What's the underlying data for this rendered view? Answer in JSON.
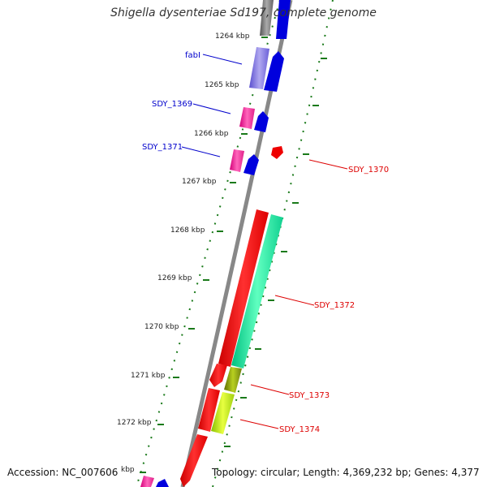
{
  "title": "Shigella dysenteriae Sd197, complete genome",
  "footer": {
    "accession": "Accession: NC_007606",
    "summary": "Topology: circular; Length: 4,369,232 bp; Genes: 4,377"
  },
  "colors": {
    "left_gene_label": "#0000cc",
    "right_gene_label": "#dd0000",
    "backbone": "#808080",
    "ticks": "#1a7a1a"
  },
  "kbp_labels": [
    "1264 kbp",
    "1265 kbp",
    "1266 kbp",
    "1267 kbp",
    "1268 kbp",
    "1269 kbp",
    "1270 kbp",
    "1271 kbp",
    "1272 kbp",
    "kbp"
  ],
  "gene_labels_left": [
    "fabI",
    "SDY_1369",
    "SDY_1371"
  ],
  "gene_labels_right": [
    "SDY_1370",
    "SDY_1372",
    "SDY_1373",
    "SDY_1374"
  ]
}
